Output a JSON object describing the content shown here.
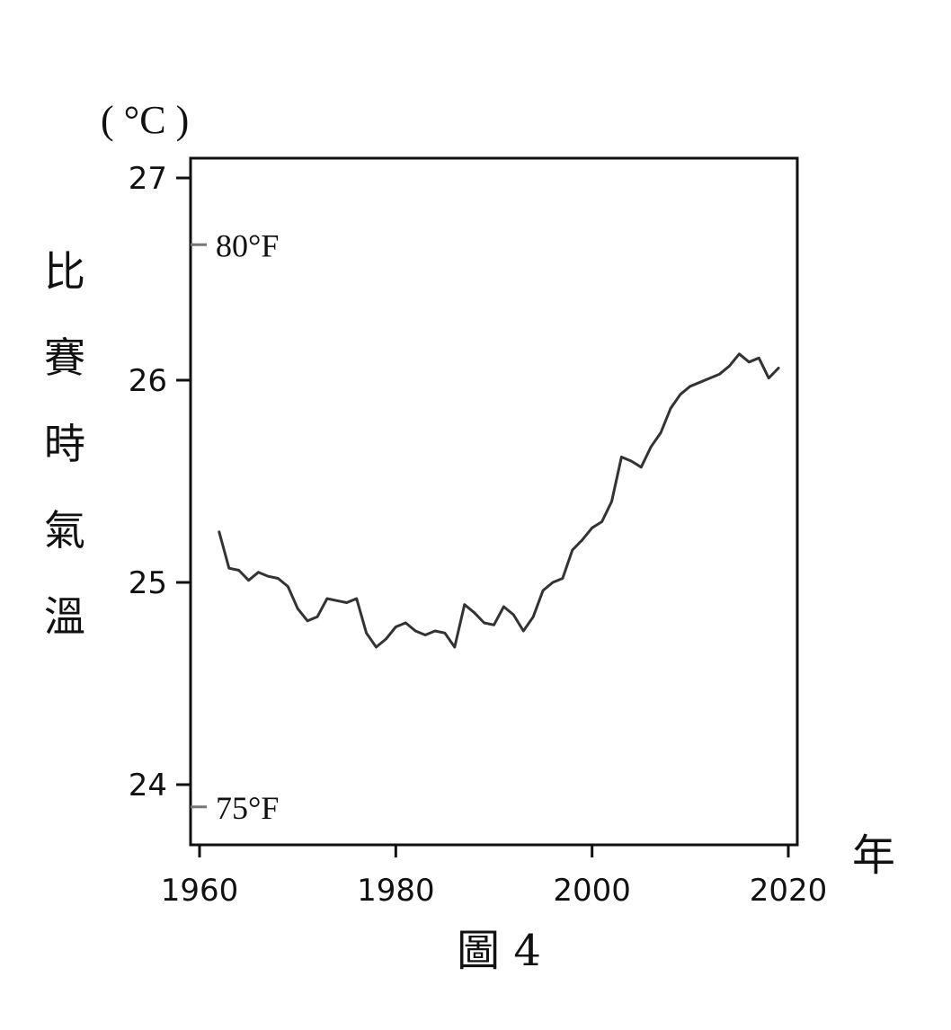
{
  "chart_data": {
    "type": "line",
    "caption": "圖 4",
    "y_unit": "( °C )",
    "ylabel": "比賽時氣溫",
    "xlabel": "年",
    "xlim": [
      1960,
      2021
    ],
    "ylim": [
      23.7,
      27.1
    ],
    "x_ticks": [
      1960,
      1980,
      2000,
      2020
    ],
    "y_ticks": [
      24,
      25,
      26,
      27
    ],
    "secondary_ticks": [
      {
        "label": "80°F",
        "value_c": 26.67
      },
      {
        "label": "75°F",
        "value_c": 23.89
      }
    ],
    "grid": false,
    "series": [
      {
        "color": "#333333",
        "x": [
          1962,
          1963,
          1964,
          1965,
          1966,
          1967,
          1968,
          1969,
          1970,
          1971,
          1972,
          1973,
          1974,
          1975,
          1976,
          1977,
          1978,
          1979,
          1980,
          1981,
          1982,
          1983,
          1984,
          1985,
          1986,
          1987,
          1988,
          1989,
          1990,
          1991,
          1992,
          1993,
          1994,
          1995,
          1996,
          1997,
          1998,
          1999,
          2000,
          2001,
          2002,
          2003,
          2004,
          2005,
          2006,
          2007,
          2008,
          2009,
          2010,
          2011,
          2012,
          2013,
          2014,
          2015,
          2016,
          2017,
          2018,
          2019
        ],
        "y": [
          25.25,
          25.07,
          25.06,
          25.01,
          25.05,
          25.03,
          25.02,
          24.98,
          24.87,
          24.81,
          24.83,
          24.92,
          24.91,
          24.9,
          24.92,
          24.75,
          24.68,
          24.72,
          24.78,
          24.8,
          24.76,
          24.74,
          24.76,
          24.75,
          24.68,
          24.89,
          24.85,
          24.8,
          24.79,
          24.88,
          24.84,
          24.76,
          24.83,
          24.96,
          25.0,
          25.02,
          25.16,
          25.21,
          25.27,
          25.3,
          25.4,
          25.62,
          25.6,
          25.57,
          25.67,
          25.74,
          25.86,
          25.93,
          25.97,
          25.99,
          26.01,
          26.03,
          26.07,
          26.13,
          26.09,
          26.11,
          26.01,
          26.06
        ]
      }
    ]
  }
}
